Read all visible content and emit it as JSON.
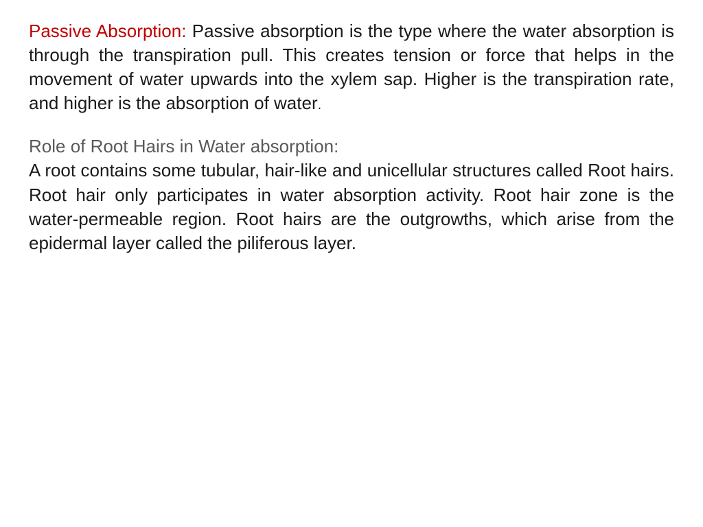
{
  "section1": {
    "title": "Passive Absorption:",
    "body": " Passive absorption is the type where the water absorption is through the transpiration pull. This creates tension or force that helps in the movement of water upwards into the xylem sap. Higher is the transpiration rate, and higher is the absorption of water",
    "period": "."
  },
  "section2": {
    "subtitle": "Role of Root Hairs in Water absorption:",
    "body_part1": "A root contains some tubular, hair-like and unicellular structures called ",
    "emphasis1": "Root hairs",
    "body_part2": ". Root hair only participates in water absorption activity. Root hair zone is the water-permeable region. Root hairs are the outgrowths, which arise from the epidermal layer called the ",
    "emphasis2": "piliferous layer",
    "body_part3": "."
  },
  "colors": {
    "title_red": "#c00000",
    "subtitle_gray": "#595959",
    "body_text": "#1a1a1a",
    "background": "#ffffff"
  },
  "typography": {
    "font_family": "Verdana, Geneva, sans-serif",
    "body_fontsize": 26,
    "line_height": 1.35
  }
}
